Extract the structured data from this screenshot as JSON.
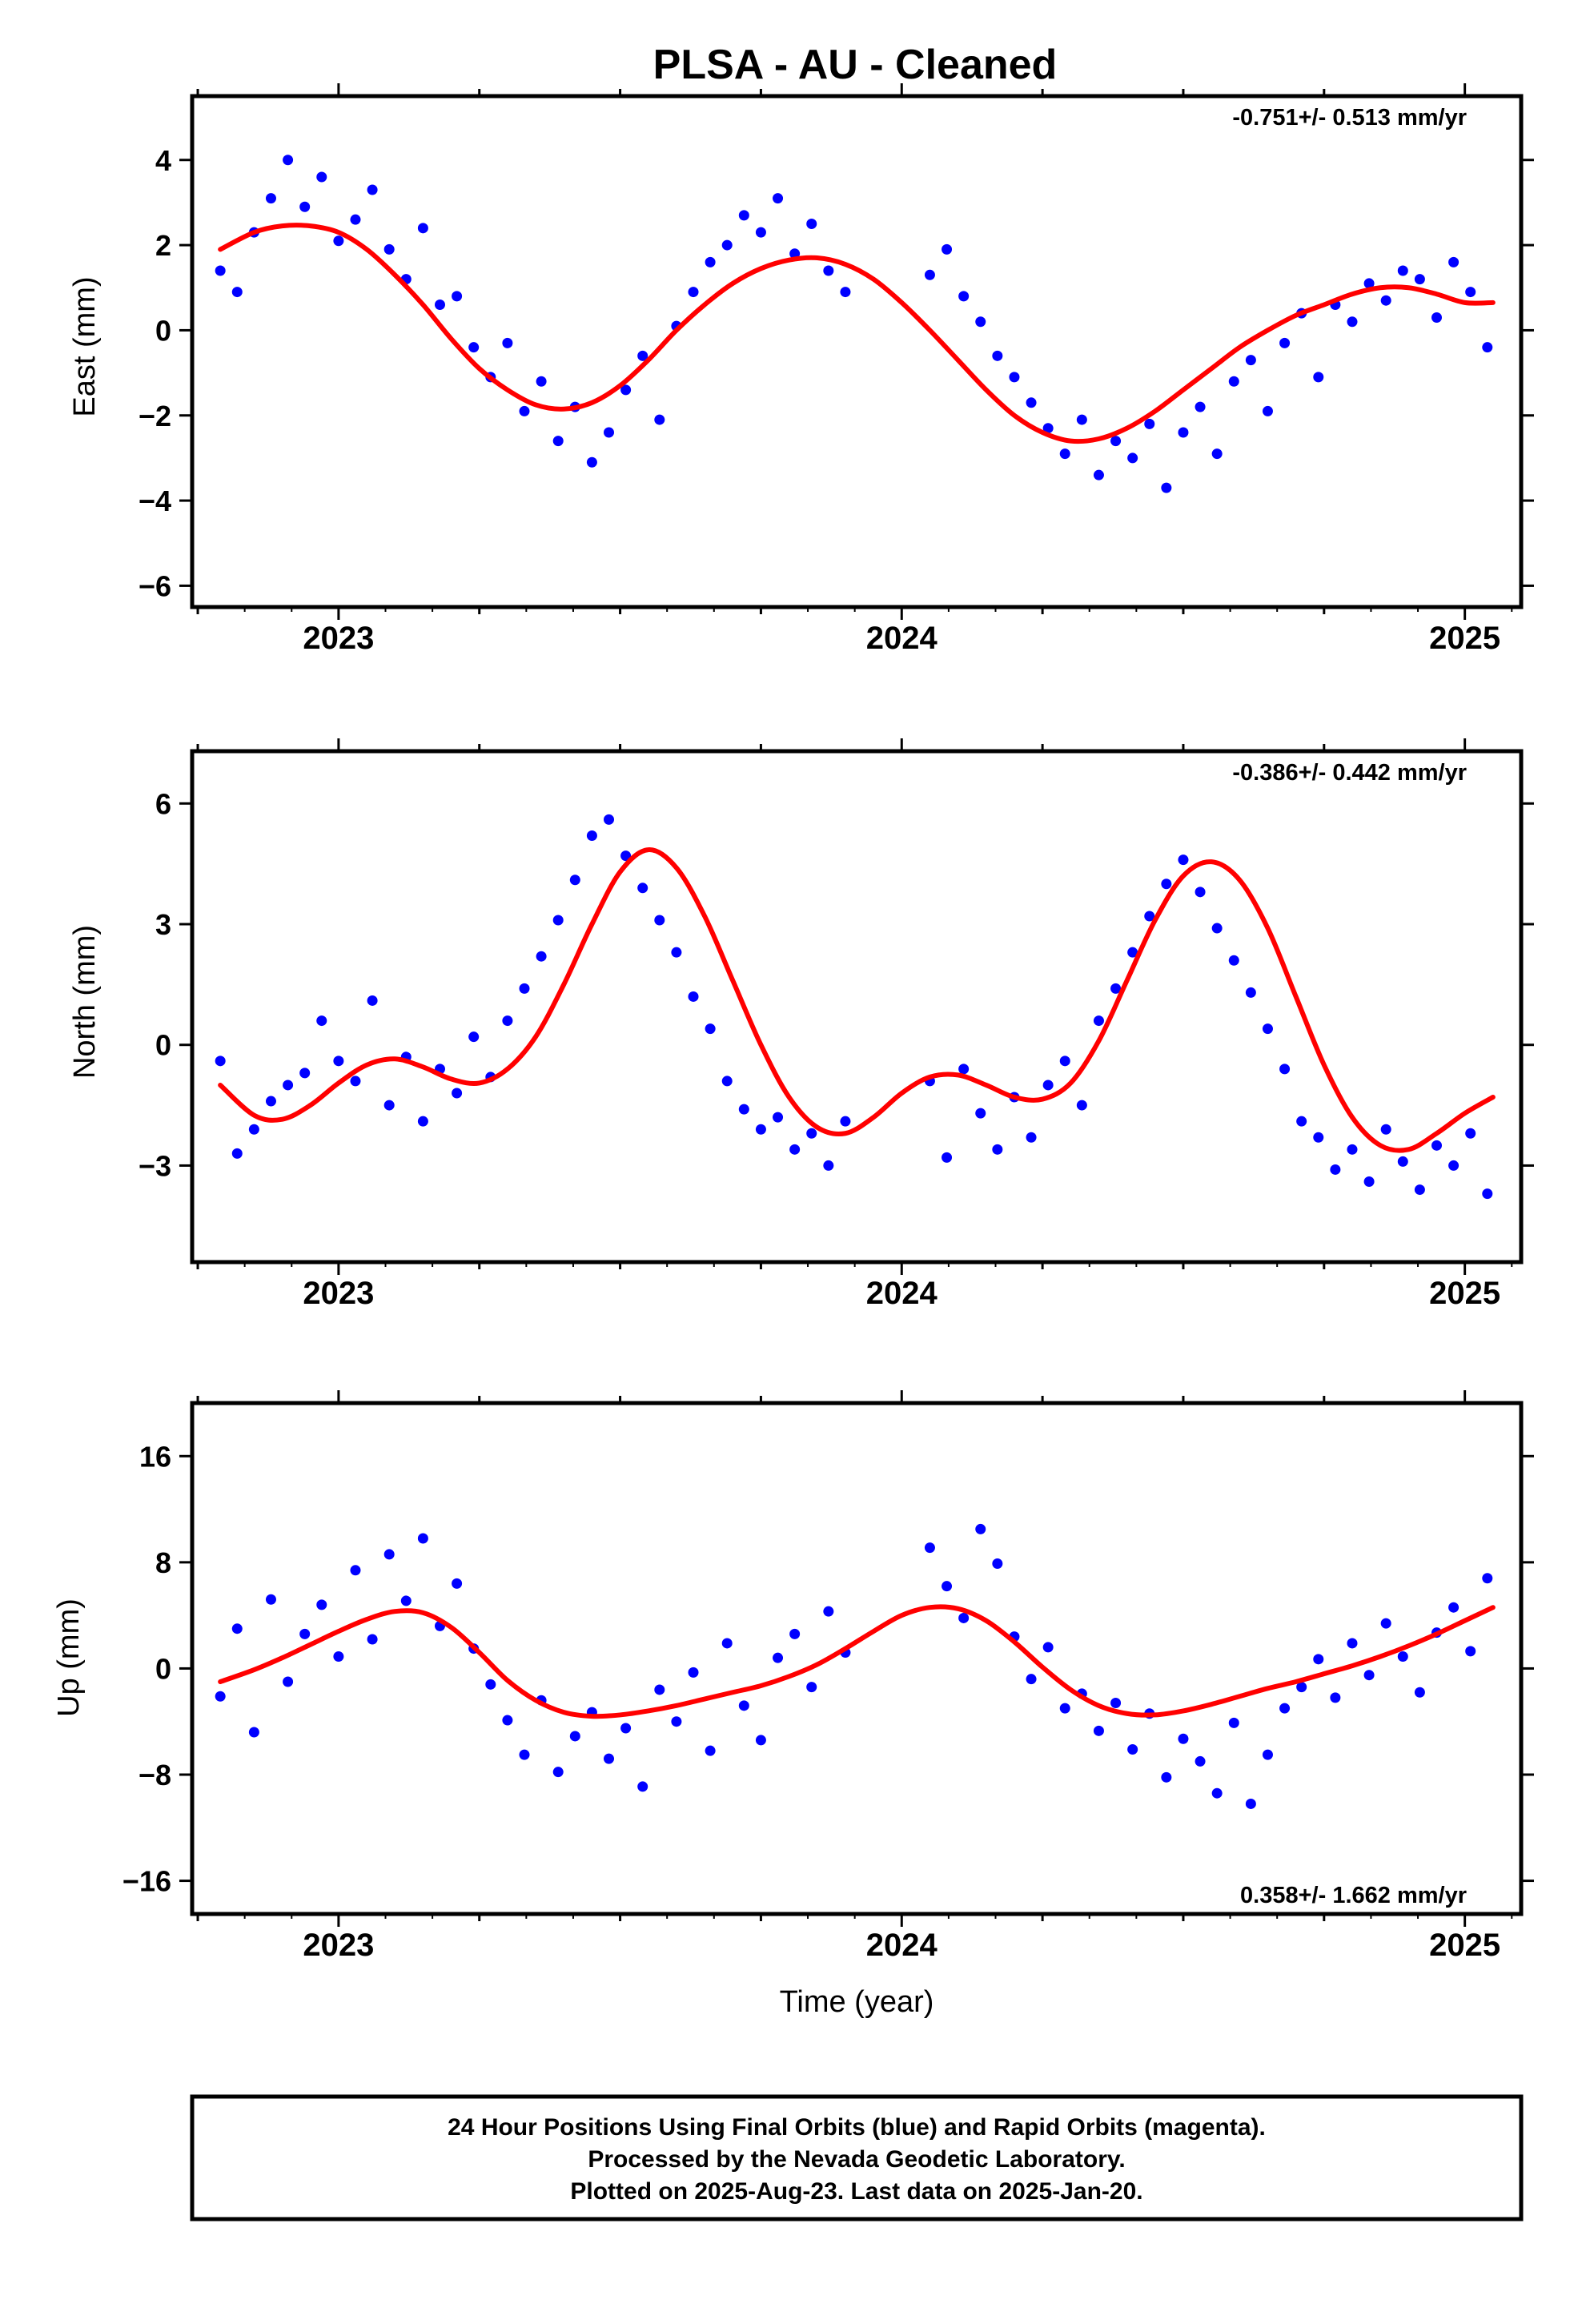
{
  "title": "PLSA  - AU - Cleaned",
  "x_axis_label": "Time (year)",
  "footer": {
    "line1": "24 Hour Positions Using Final Orbits (blue) and Rapid Orbits (magenta).",
    "line2": "Processed by the Nevada Geodetic Laboratory.",
    "line3": "Plotted on 2025-Aug-23. Last data on 2025-Jan-20."
  },
  "colors": {
    "final_orbit_points": "#0000ff",
    "model_fit": "#ff0000",
    "frame": "#000000"
  },
  "chart_data": [
    {
      "type": "scatter",
      "component": "East",
      "ylabel": "East (mm)",
      "rate_label": "-0.751+/- 0.513 mm/yr",
      "xlim": [
        2022.74,
        2025.1
      ],
      "ylim": [
        -6.5,
        5.5
      ],
      "yticks": [
        4,
        2,
        0,
        -2,
        -4,
        -6
      ],
      "ytick_labels": [
        "4",
        "2",
        "0",
        "−2",
        "−4",
        "−6"
      ],
      "xticks": [
        2023,
        2024,
        2025
      ],
      "xtick_labels": [
        "2023",
        "2024",
        "2025"
      ],
      "grid": false,
      "series": [
        {
          "kind": "points",
          "x": [
            2022.79,
            2022.82,
            2022.85,
            2022.88,
            2022.91,
            2022.94,
            2022.97,
            2023.0,
            2023.03,
            2023.06,
            2023.09,
            2023.12,
            2023.15,
            2023.18,
            2023.21,
            2023.24,
            2023.27,
            2023.3,
            2023.33,
            2023.36,
            2023.39,
            2023.42,
            2023.45,
            2023.48,
            2023.51,
            2023.54,
            2023.57,
            2023.6,
            2023.63,
            2023.66,
            2023.69,
            2023.72,
            2023.75,
            2023.78,
            2023.81,
            2023.84,
            2023.87,
            2023.9,
            2024.05,
            2024.08,
            2024.11,
            2024.14,
            2024.17,
            2024.2,
            2024.23,
            2024.26,
            2024.29,
            2024.32,
            2024.35,
            2024.38,
            2024.41,
            2024.44,
            2024.47,
            2024.5,
            2024.53,
            2024.56,
            2024.59,
            2024.62,
            2024.65,
            2024.68,
            2024.71,
            2024.74,
            2024.77,
            2024.8,
            2024.83,
            2024.86,
            2024.89,
            2024.92,
            2024.95,
            2024.98,
            2025.01,
            2025.04
          ],
          "y": [
            1.4,
            0.9,
            2.3,
            3.1,
            4.0,
            2.9,
            3.6,
            2.1,
            2.6,
            3.3,
            1.9,
            1.2,
            2.4,
            0.6,
            0.8,
            -0.4,
            -1.1,
            -0.3,
            -1.9,
            -1.2,
            -2.6,
            -1.8,
            -3.1,
            -2.4,
            -1.4,
            -0.6,
            -2.1,
            0.1,
            0.9,
            1.6,
            2.0,
            2.7,
            2.3,
            3.1,
            1.8,
            2.5,
            1.4,
            0.9,
            1.3,
            1.9,
            0.8,
            0.2,
            -0.6,
            -1.1,
            -1.7,
            -2.3,
            -2.9,
            -2.1,
            -3.4,
            -2.6,
            -3.0,
            -2.2,
            -3.7,
            -2.4,
            -1.8,
            -2.9,
            -1.2,
            -0.7,
            -1.9,
            -0.3,
            0.4,
            -1.1,
            0.6,
            0.2,
            1.1,
            0.7,
            1.4,
            1.2,
            0.3,
            1.6,
            0.9,
            -0.4
          ]
        },
        {
          "kind": "model",
          "x": [
            2022.79,
            2022.85,
            2022.9,
            2022.95,
            2023.0,
            2023.05,
            2023.1,
            2023.15,
            2023.2,
            2023.25,
            2023.3,
            2023.35,
            2023.4,
            2023.45,
            2023.5,
            2023.55,
            2023.6,
            2023.65,
            2023.7,
            2023.75,
            2023.8,
            2023.85,
            2023.9,
            2023.95,
            2024.0,
            2024.05,
            2024.1,
            2024.15,
            2024.2,
            2024.25,
            2024.3,
            2024.35,
            2024.4,
            2024.45,
            2024.5,
            2024.55,
            2024.6,
            2024.65,
            2024.7,
            2024.75,
            2024.8,
            2024.85,
            2024.9,
            2024.95,
            2025.0,
            2025.05
          ],
          "y": [
            1.9,
            2.3,
            2.45,
            2.45,
            2.3,
            1.9,
            1.3,
            0.6,
            -0.2,
            -0.9,
            -1.4,
            -1.75,
            -1.85,
            -1.7,
            -1.3,
            -0.7,
            0.0,
            0.6,
            1.1,
            1.45,
            1.65,
            1.7,
            1.55,
            1.2,
            0.65,
            0.0,
            -0.7,
            -1.4,
            -2.0,
            -2.4,
            -2.6,
            -2.55,
            -2.3,
            -1.9,
            -1.4,
            -0.9,
            -0.4,
            0.0,
            0.35,
            0.6,
            0.85,
            1.0,
            1.0,
            0.85,
            0.65,
            0.65
          ]
        }
      ]
    },
    {
      "type": "scatter",
      "component": "North",
      "ylabel": "North (mm)",
      "rate_label": "-0.386+/- 0.442 mm/yr",
      "xlim": [
        2022.74,
        2025.1
      ],
      "ylim": [
        -5.4,
        7.3
      ],
      "yticks": [
        6,
        3,
        0,
        -3
      ],
      "ytick_labels": [
        "6",
        "3",
        "0",
        "−3"
      ],
      "xticks": [
        2023,
        2024,
        2025
      ],
      "xtick_labels": [
        "2023",
        "2024",
        "2025"
      ],
      "grid": false,
      "series": [
        {
          "kind": "points",
          "x": [
            2022.79,
            2022.82,
            2022.85,
            2022.88,
            2022.91,
            2022.94,
            2022.97,
            2023.0,
            2023.03,
            2023.06,
            2023.09,
            2023.12,
            2023.15,
            2023.18,
            2023.21,
            2023.24,
            2023.27,
            2023.3,
            2023.33,
            2023.36,
            2023.39,
            2023.42,
            2023.45,
            2023.48,
            2023.51,
            2023.54,
            2023.57,
            2023.6,
            2023.63,
            2023.66,
            2023.69,
            2023.72,
            2023.75,
            2023.78,
            2023.81,
            2023.84,
            2023.87,
            2023.9,
            2024.05,
            2024.08,
            2024.11,
            2024.14,
            2024.17,
            2024.2,
            2024.23,
            2024.26,
            2024.29,
            2024.32,
            2024.35,
            2024.38,
            2024.41,
            2024.44,
            2024.47,
            2024.5,
            2024.53,
            2024.56,
            2024.59,
            2024.62,
            2024.65,
            2024.68,
            2024.71,
            2024.74,
            2024.77,
            2024.8,
            2024.83,
            2024.86,
            2024.89,
            2024.92,
            2024.95,
            2024.98,
            2025.01,
            2025.04
          ],
          "y": [
            -0.4,
            -2.7,
            -2.1,
            -1.4,
            -1.0,
            -0.7,
            0.6,
            -0.4,
            -0.9,
            1.1,
            -1.5,
            -0.3,
            -1.9,
            -0.6,
            -1.2,
            0.2,
            -0.8,
            0.6,
            1.4,
            2.2,
            3.1,
            4.1,
            5.2,
            5.6,
            4.7,
            3.9,
            3.1,
            2.3,
            1.2,
            0.4,
            -0.9,
            -1.6,
            -2.1,
            -1.8,
            -2.6,
            -2.2,
            -3.0,
            -1.9,
            -0.9,
            -2.8,
            -0.6,
            -1.7,
            -2.6,
            -1.3,
            -2.3,
            -1.0,
            -0.4,
            -1.5,
            0.6,
            1.4,
            2.3,
            3.2,
            4.0,
            4.6,
            3.8,
            2.9,
            2.1,
            1.3,
            0.4,
            -0.6,
            -1.9,
            -2.3,
            -3.1,
            -2.6,
            -3.4,
            -2.1,
            -2.9,
            -3.6,
            -2.5,
            -3.0,
            -2.2,
            -3.7
          ]
        },
        {
          "kind": "model",
          "x": [
            2022.79,
            2022.85,
            2022.9,
            2022.95,
            2023.0,
            2023.05,
            2023.1,
            2023.15,
            2023.2,
            2023.25,
            2023.3,
            2023.35,
            2023.4,
            2023.45,
            2023.5,
            2023.55,
            2023.6,
            2023.65,
            2023.7,
            2023.75,
            2023.8,
            2023.85,
            2023.9,
            2023.95,
            2024.0,
            2024.05,
            2024.1,
            2024.15,
            2024.2,
            2024.25,
            2024.3,
            2024.35,
            2024.4,
            2024.45,
            2024.5,
            2024.55,
            2024.6,
            2024.65,
            2024.7,
            2024.75,
            2024.8,
            2024.85,
            2024.9,
            2024.95,
            2025.0,
            2025.05
          ],
          "y": [
            -1.0,
            -1.75,
            -1.85,
            -1.5,
            -0.95,
            -0.5,
            -0.35,
            -0.55,
            -0.85,
            -0.95,
            -0.6,
            0.2,
            1.5,
            3.0,
            4.3,
            4.85,
            4.4,
            3.2,
            1.6,
            0.0,
            -1.3,
            -2.05,
            -2.2,
            -1.8,
            -1.2,
            -0.8,
            -0.75,
            -1.0,
            -1.3,
            -1.35,
            -0.95,
            0.1,
            1.6,
            3.1,
            4.2,
            4.55,
            4.1,
            2.9,
            1.2,
            -0.5,
            -1.8,
            -2.5,
            -2.6,
            -2.2,
            -1.7,
            -1.3
          ]
        }
      ]
    },
    {
      "type": "scatter",
      "component": "Up",
      "ylabel": "Up (mm)",
      "rate_label": "0.358+/- 1.662 mm/yr",
      "xlim": [
        2022.74,
        2025.1
      ],
      "ylim": [
        -18.5,
        20
      ],
      "yticks": [
        16,
        8,
        0,
        -8,
        -16
      ],
      "ytick_labels": [
        "16",
        "8",
        "0",
        "−8",
        "−16"
      ],
      "xticks": [
        2023,
        2024,
        2025
      ],
      "xtick_labels": [
        "2023",
        "2024",
        "2025"
      ],
      "grid": false,
      "series": [
        {
          "kind": "points",
          "x": [
            2022.79,
            2022.82,
            2022.85,
            2022.88,
            2022.91,
            2022.94,
            2022.97,
            2023.0,
            2023.03,
            2023.06,
            2023.09,
            2023.12,
            2023.15,
            2023.18,
            2023.21,
            2023.24,
            2023.27,
            2023.3,
            2023.33,
            2023.36,
            2023.39,
            2023.42,
            2023.45,
            2023.48,
            2023.51,
            2023.54,
            2023.57,
            2023.6,
            2023.63,
            2023.66,
            2023.69,
            2023.72,
            2023.75,
            2023.78,
            2023.81,
            2023.84,
            2023.87,
            2023.9,
            2024.05,
            2024.08,
            2024.11,
            2024.14,
            2024.17,
            2024.2,
            2024.23,
            2024.26,
            2024.29,
            2024.32,
            2024.35,
            2024.38,
            2024.41,
            2024.44,
            2024.47,
            2024.5,
            2024.53,
            2024.56,
            2024.59,
            2024.62,
            2024.65,
            2024.68,
            2024.71,
            2024.74,
            2024.77,
            2024.8,
            2024.83,
            2024.86,
            2024.89,
            2024.92,
            2024.95,
            2024.98,
            2025.01,
            2025.04
          ],
          "y": [
            -2.1,
            3.0,
            -4.8,
            5.2,
            -1.0,
            2.6,
            4.8,
            0.9,
            7.4,
            2.2,
            8.6,
            5.1,
            9.8,
            3.2,
            6.4,
            1.5,
            -1.2,
            -3.9,
            -6.5,
            -2.4,
            -7.8,
            -5.1,
            -3.3,
            -6.8,
            -4.5,
            -8.9,
            -1.6,
            -4.0,
            -0.3,
            -6.2,
            1.9,
            -2.8,
            -5.4,
            0.8,
            2.6,
            -1.4,
            4.3,
            1.2,
            9.1,
            6.2,
            3.8,
            10.5,
            7.9,
            2.4,
            -0.8,
            1.6,
            -3.0,
            -1.9,
            -4.7,
            -2.6,
            -6.1,
            -3.4,
            -8.2,
            -5.3,
            -7.0,
            -9.4,
            -4.1,
            -10.2,
            -6.5,
            -3.0,
            -1.4,
            0.7,
            -2.2,
            1.9,
            -0.5,
            3.4,
            0.9,
            -1.8,
            2.7,
            4.6,
            1.3,
            6.8
          ]
        },
        {
          "kind": "model",
          "x": [
            2022.79,
            2022.85,
            2022.9,
            2022.95,
            2023.0,
            2023.05,
            2023.1,
            2023.15,
            2023.2,
            2023.25,
            2023.3,
            2023.35,
            2023.4,
            2023.45,
            2023.5,
            2023.55,
            2023.6,
            2023.65,
            2023.7,
            2023.75,
            2023.8,
            2023.85,
            2023.9,
            2023.95,
            2024.0,
            2024.05,
            2024.1,
            2024.15,
            2024.2,
            2024.25,
            2024.3,
            2024.35,
            2024.4,
            2024.45,
            2024.5,
            2024.55,
            2024.6,
            2024.65,
            2024.7,
            2024.75,
            2024.8,
            2024.85,
            2024.9,
            2024.95,
            2025.0,
            2025.05
          ],
          "y": [
            -1.0,
            -0.1,
            0.8,
            1.8,
            2.8,
            3.7,
            4.3,
            4.2,
            3.1,
            1.2,
            -0.9,
            -2.4,
            -3.3,
            -3.6,
            -3.5,
            -3.2,
            -2.8,
            -2.3,
            -1.8,
            -1.3,
            -0.6,
            0.3,
            1.5,
            2.8,
            4.0,
            4.6,
            4.5,
            3.6,
            2.0,
            0.1,
            -1.6,
            -2.8,
            -3.4,
            -3.5,
            -3.2,
            -2.7,
            -2.1,
            -1.5,
            -1.0,
            -0.4,
            0.2,
            0.9,
            1.7,
            2.6,
            3.6,
            4.6
          ]
        }
      ]
    }
  ]
}
